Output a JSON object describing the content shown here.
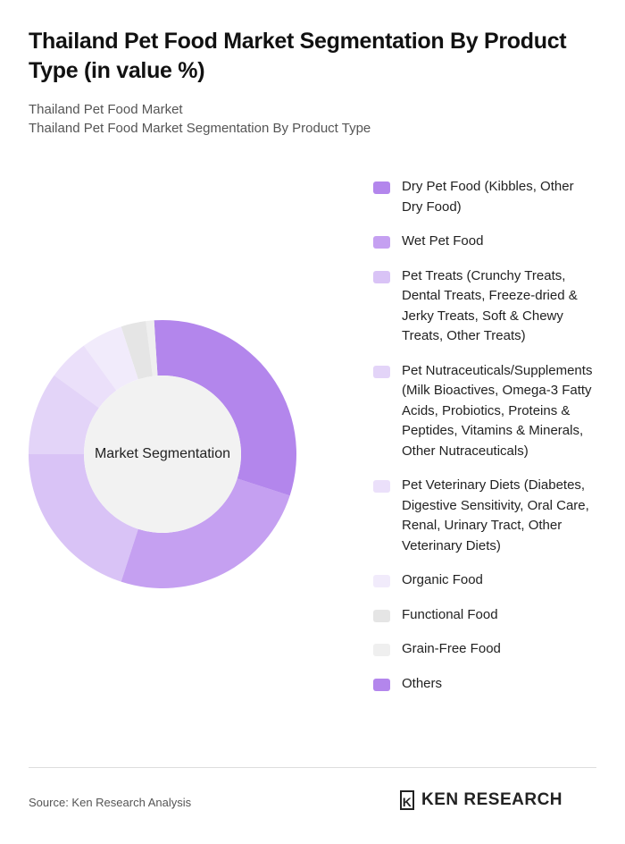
{
  "chart_data": {
    "type": "donut",
    "title": "Thailand Pet Food Market Segmentation By Product Type (in value %)",
    "subtitle": [
      "Thailand Pet Food Market",
      "Thailand Pet Food Market Segmentation By Product Type"
    ],
    "center_label": "Market Segmentation",
    "categories": [
      "Dry Pet Food (Kibbles, Other Dry Food)",
      "Wet Pet Food",
      "Pet Treats (Crunchy Treats, Dental Treats, Freeze-dried & Jerky Treats, Soft & Chewy Treats, Other Treats)",
      "Pet Nutraceuticals/Supplements (Milk Bioactives, Omega-3 Fatty Acids, Probiotics, Proteins & Peptides, Vitamins & Minerals, Other Nutraceuticals)",
      "Pet Veterinary Diets (Diabetes, Digestive Sensitivity, Oral Care, Renal, Urinary Tract, Other Veterinary Diets)",
      "Organic Food",
      "Functional Food",
      "Grain-Free Food",
      "Others"
    ],
    "values": [
      30,
      25,
      20,
      10,
      5,
      5,
      3,
      1,
      1
    ],
    "colors": [
      "#b386ec",
      "#c5a0f1",
      "#d9c3f6",
      "#e3d4f8",
      "#ebe0fa",
      "#f1ebfb",
      "#e5e5e5",
      "#efefef",
      "#b386ec"
    ],
    "source": "Source: Ken Research Analysis",
    "brand": "KEN RESEARCH"
  }
}
